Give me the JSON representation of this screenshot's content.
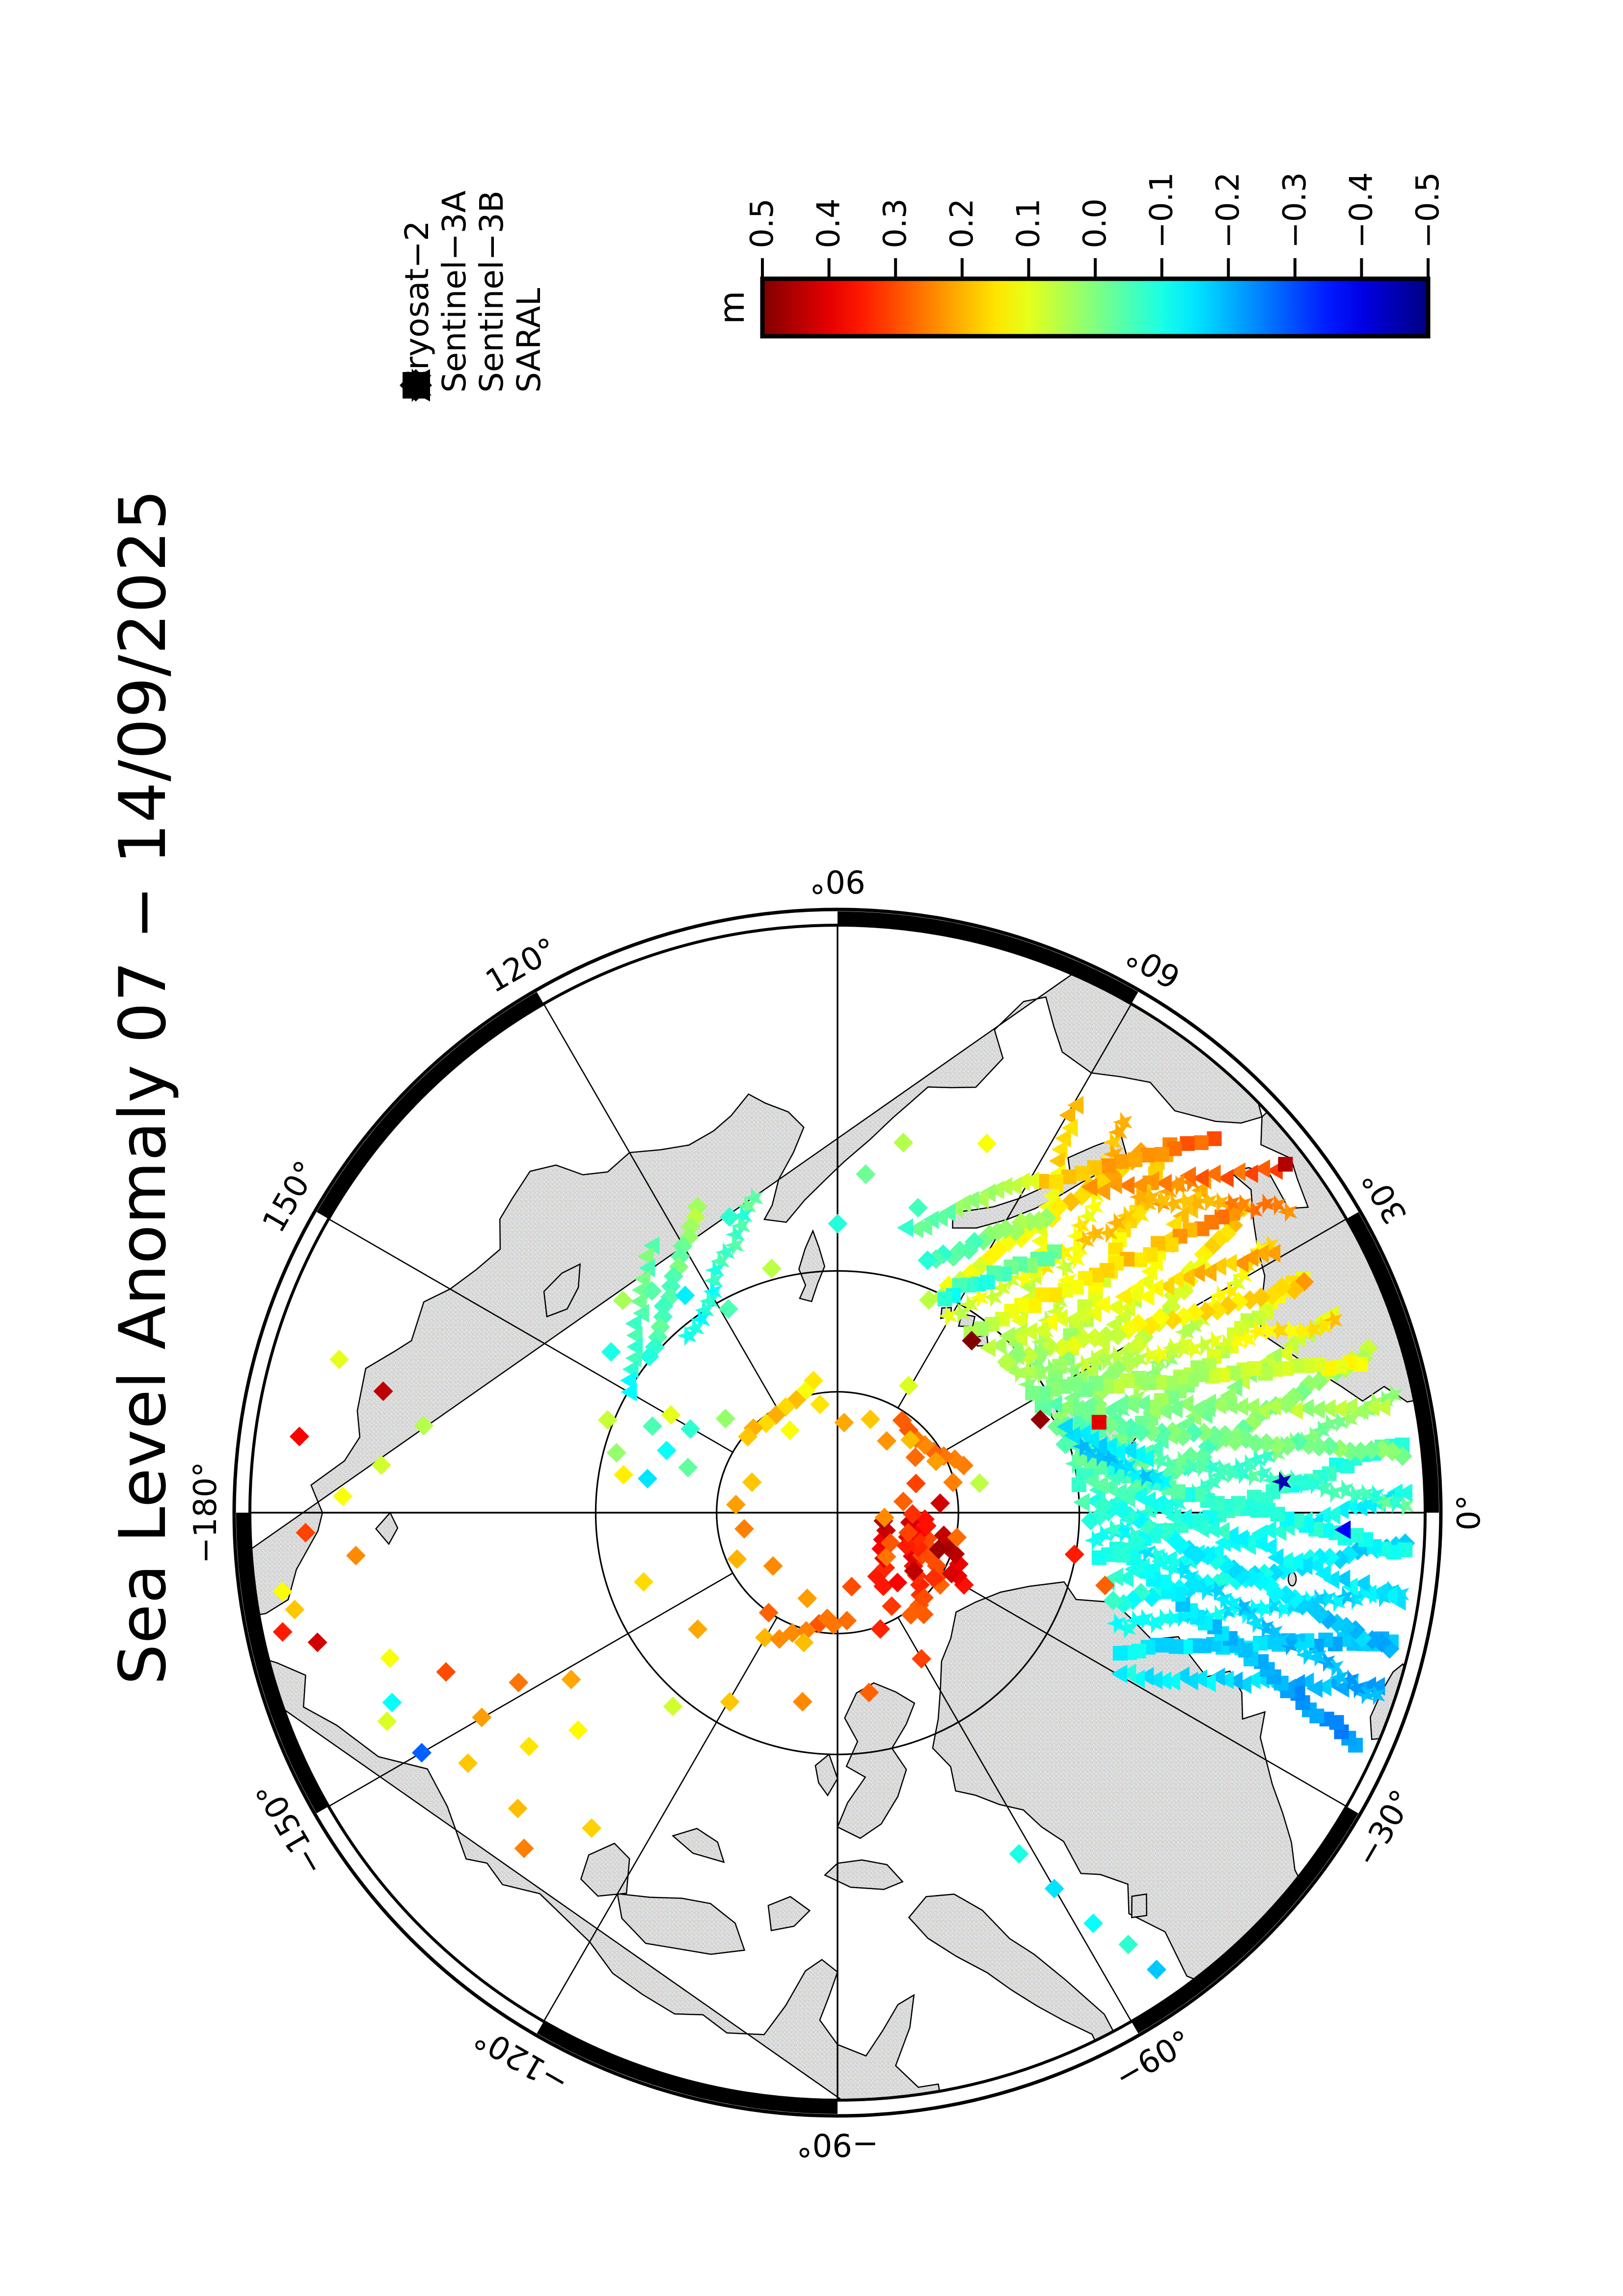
{
  "title": "Sea Level Anomaly 07 − 14/09/2025",
  "legend": {
    "items": [
      {
        "label": "Cryosat−2",
        "symbol": "diamond"
      },
      {
        "label": "Sentinel−3A",
        "symbol": "triangle"
      },
      {
        "label": "Sentinel−3B",
        "symbol": "square"
      },
      {
        "label": "SARAL",
        "symbol": "star"
      }
    ]
  },
  "colorbar": {
    "unit": "m",
    "max": 0.5,
    "min": -0.5,
    "tick_step": 0.1,
    "ticks": [
      "0.5",
      "0.4",
      "0.3",
      "0.2",
      "0.1",
      "0.0",
      "−0.1",
      "−0.2",
      "−0.3",
      "−0.4",
      "−0.5"
    ],
    "palette": "jet"
  },
  "map": {
    "projection": "north_polar_azimuthal",
    "boundary_lat": 66,
    "grid_lat_circles": [
      85,
      80
    ],
    "grid_lon_step": 30,
    "lon_labels": [
      {
        "lon": 0,
        "text": "0°"
      },
      {
        "lon": 30,
        "text": "30°"
      },
      {
        "lon": 60,
        "text": "60°"
      },
      {
        "lon": 90,
        "text": "90°"
      },
      {
        "lon": 120,
        "text": "120°"
      },
      {
        "lon": 150,
        "text": "150°"
      },
      {
        "lon": -180,
        "text": "−180°"
      },
      {
        "lon": -150,
        "text": "−150°"
      },
      {
        "lon": -120,
        "text": "−120°"
      },
      {
        "lon": -90,
        "text": "−90°"
      },
      {
        "lon": -60,
        "text": "−60°"
      },
      {
        "lon": -30,
        "text": "−30°"
      }
    ]
  },
  "chart_data": {
    "type": "scatter",
    "title": "Sea Level Anomaly 07 − 14/09/2025",
    "value_field": "sea_level_anomaly_m",
    "value_range": [
      -0.5,
      0.5
    ],
    "series": [
      {
        "name": "Cryosat−2",
        "marker": "diamond"
      },
      {
        "name": "Sentinel−3A",
        "marker": "triangle"
      },
      {
        "name": "Sentinel−3B",
        "marker": "square"
      },
      {
        "name": "SARAL",
        "marker": "star"
      }
    ],
    "tracks": [
      [
        1,
        -18,
        66.5,
        -30,
        76.5,
        -0.22,
        -0.12,
        30
      ],
      [
        2,
        -13,
        66.5,
        -26,
        77.0,
        -0.2,
        -0.13,
        30
      ],
      [
        3,
        -8,
        66.5,
        -22,
        77.5,
        -0.18,
        -0.12,
        32
      ],
      [
        0,
        -3,
        66.5,
        -18,
        78.0,
        -0.16,
        -0.1,
        32
      ],
      [
        1,
        2,
        66.5,
        -14,
        78.5,
        -0.12,
        -0.1,
        34
      ],
      [
        2,
        7,
        66.5,
        -10,
        79.0,
        -0.06,
        -0.12,
        34
      ],
      [
        3,
        12,
        66.5,
        -6,
        79.3,
        0.02,
        -0.12,
        34
      ],
      [
        0,
        17,
        67.0,
        -2,
        79.5,
        0.06,
        -0.1,
        34
      ],
      [
        1,
        22,
        68.0,
        2,
        79.8,
        0.1,
        -0.08,
        32
      ],
      [
        2,
        27,
        68.5,
        7,
        80.0,
        0.14,
        -0.06,
        32
      ],
      [
        3,
        32,
        69.0,
        12,
        80.0,
        0.16,
        -0.05,
        30
      ],
      [
        0,
        37,
        69.0,
        17,
        80.2,
        0.18,
        -0.04,
        30
      ],
      [
        1,
        42,
        69.5,
        22,
        80.3,
        0.2,
        -0.02,
        28
      ],
      [
        2,
        48,
        69.5,
        28,
        80.5,
        0.22,
        0.0,
        28
      ],
      [
        3,
        54,
        70.0,
        34,
        80.5,
        0.2,
        0.02,
        26
      ],
      [
        1,
        60,
        70.5,
        40,
        80.6,
        0.18,
        0.04,
        24
      ],
      [
        2,
        -24,
        66.5,
        -8,
        78.0,
        -0.24,
        -0.12,
        32
      ],
      [
        3,
        -19,
        66.5,
        -3,
        78.5,
        -0.22,
        -0.1,
        32
      ],
      [
        0,
        -14,
        66.5,
        2,
        79.0,
        -0.2,
        -0.08,
        34
      ],
      [
        1,
        -9,
        66.5,
        7,
        79.4,
        -0.16,
        -0.06,
        34
      ],
      [
        2,
        -4,
        66.5,
        12,
        79.7,
        -0.12,
        -0.05,
        34
      ],
      [
        3,
        1,
        66.5,
        17,
        80.0,
        -0.06,
        -0.04,
        34
      ],
      [
        0,
        6,
        66.5,
        22,
        80.2,
        0.0,
        -0.03,
        34
      ],
      [
        1,
        11,
        67.0,
        27,
        80.4,
        0.06,
        -0.02,
        32
      ],
      [
        2,
        16,
        67.5,
        32,
        80.5,
        0.12,
        0.0,
        32
      ],
      [
        3,
        21,
        68.0,
        37,
        80.6,
        0.16,
        0.02,
        30
      ],
      [
        0,
        26,
        68.5,
        42,
        80.6,
        0.2,
        0.04,
        28
      ],
      [
        1,
        31,
        69.0,
        48,
        80.7,
        0.22,
        0.05,
        28
      ],
      [
        2,
        37,
        69.5,
        54,
        80.7,
        0.24,
        0.06,
        26
      ],
      [
        3,
        43,
        70.0,
        60,
        80.7,
        0.22,
        0.07,
        24
      ],
      [
        0,
        50,
        70.5,
        66,
        80.5,
        0.2,
        0.08,
        22
      ],
      [
        1,
        38,
        67.0,
        52,
        73.0,
        0.3,
        0.2,
        16
      ],
      [
        2,
        45,
        68.0,
        58,
        74.0,
        0.28,
        0.18,
        14
      ],
      [
        3,
        34,
        67.5,
        46,
        72.0,
        0.26,
        0.18,
        14
      ],
      [
        0,
        55,
        75.0,
        70,
        79.0,
        0.05,
        -0.08,
        16
      ],
      [
        1,
        60,
        74.0,
        76,
        78.0,
        0.08,
        -0.05,
        16
      ],
      [
        2,
        50,
        76.0,
        64,
        80.0,
        0.0,
        -0.1,
        14
      ],
      [
        3,
        105,
        76.5,
        130,
        80.5,
        -0.05,
        -0.12,
        16
      ],
      [
        0,
        115,
        76.0,
        140,
        80.0,
        0.04,
        -0.08,
        16
      ],
      [
        1,
        125,
        76.5,
        150,
        80.0,
        -0.02,
        -0.1,
        14
      ],
      [
        0,
        -50,
        84.5,
        -20,
        87.0,
        0.3,
        0.4,
        9
      ],
      [
        0,
        -35,
        84.8,
        -5,
        86.5,
        0.26,
        0.36,
        8
      ],
      [
        0,
        20,
        84.5,
        55,
        85.5,
        0.24,
        0.3,
        8
      ],
      [
        0,
        -120,
        84.0,
        -85,
        85.5,
        0.22,
        0.28,
        7
      ],
      [
        0,
        100,
        84.5,
        135,
        85.2,
        0.14,
        0.2,
        7
      ],
      [
        0,
        -60,
        86.5,
        -10,
        88.0,
        0.32,
        0.42,
        8
      ],
      [
        0,
        -30,
        84.0,
        -12,
        85.5,
        0.35,
        0.45,
        6
      ],
      [
        0,
        -25,
        86.0,
        -8,
        87.0,
        0.3,
        0.42,
        5
      ],
      [
        3,
        5,
        76.5,
        15,
        79.5,
        -0.15,
        -0.18,
        10
      ],
      [
        1,
        10,
        77.0,
        20,
        80.0,
        -0.12,
        -0.16,
        10
      ]
    ],
    "points": [
      [
        -60,
        85.5,
        0.32
      ],
      [
        -55,
        84.8,
        0.28
      ],
      [
        -50,
        86.2,
        0.38
      ],
      [
        -45,
        85.0,
        0.3
      ],
      [
        -42,
        87.2,
        0.26
      ],
      [
        -38,
        86.0,
        0.44
      ],
      [
        -35,
        85.2,
        0.33
      ],
      [
        -30,
        87.5,
        0.29
      ],
      [
        -28,
        84.6,
        0.41
      ],
      [
        -25,
        86.8,
        0.35
      ],
      [
        -20,
        85.5,
        0.47
      ],
      [
        -15,
        87.0,
        0.31
      ],
      [
        -12,
        84.9,
        0.27
      ],
      [
        -8,
        86.3,
        0.36
      ],
      [
        -5,
        88.0,
        0.24
      ],
      [
        0,
        86.9,
        0.33
      ],
      [
        5,
        85.8,
        0.42
      ],
      [
        10,
        87.3,
        0.28
      ],
      [
        15,
        85.1,
        0.25
      ],
      [
        20,
        86.6,
        0.31
      ],
      [
        28,
        85.4,
        0.22
      ],
      [
        35,
        86.1,
        0.27
      ],
      [
        45,
        85.7,
        0.19
      ],
      [
        55,
        86.4,
        0.23
      ],
      [
        70,
        85.9,
        0.18
      ],
      [
        85,
        86.2,
        0.21
      ],
      [
        100,
        85.5,
        0.15
      ],
      [
        120,
        86.0,
        0.12
      ],
      [
        140,
        85.2,
        0.18
      ],
      [
        160,
        86.3,
        0.18
      ],
      [
        175,
        85.8,
        0.22
      ],
      [
        -170,
        86.1,
        0.25
      ],
      [
        -155,
        85.4,
        0.2
      ],
      [
        -140,
        86.5,
        0.24
      ],
      [
        -125,
        85.0,
        0.28
      ],
      [
        -110,
        86.2,
        0.22
      ],
      [
        -95,
        85.6,
        0.26
      ],
      [
        -80,
        86.9,
        0.3
      ],
      [
        -70,
        84.9,
        0.34
      ],
      [
        -100,
        82.0,
        0.24
      ],
      [
        -120,
        81.0,
        0.18
      ],
      [
        -140,
        82.5,
        0.21
      ],
      [
        -160,
        81.5,
        0.16
      ],
      [
        -80,
        82.5,
        0.28
      ],
      [
        -60,
        83.0,
        0.31
      ],
      [
        170,
        81.0,
        0.14
      ],
      [
        150,
        82.0,
        0.1
      ],
      [
        -130,
        79.5,
        0.08
      ],
      [
        130,
        78.0,
        -0.04
      ],
      [
        -150,
        73.0,
        0.22
      ],
      [
        -146,
        71.5,
        0.18
      ],
      [
        -152,
        75.0,
        0.26
      ],
      [
        -158,
        72.5,
        0.3
      ],
      [
        -143,
        74.0,
        0.15
      ],
      [
        -137,
        72.0,
        0.19
      ],
      [
        -162,
        70.5,
        0.12
      ],
      [
        -155,
        69.5,
        0.09
      ],
      [
        -133,
        71.0,
        0.25
      ],
      [
        -128,
        73.5,
        0.17
      ],
      [
        -148,
        77.0,
        0.21
      ],
      [
        -140,
        76.0,
        0.13
      ],
      [
        -150,
        70.2,
        -0.28
      ],
      [
        -157,
        70.0,
        -0.12
      ],
      [
        -175,
        70.0,
        0.24
      ],
      [
        -178,
        68.0,
        0.31
      ],
      [
        178,
        69.5,
        0.12
      ],
      [
        174,
        71.0,
        0.08
      ],
      [
        168,
        72.5,
        0.05
      ],
      [
        165,
        70.5,
        0.44
      ],
      [
        172,
        67.5,
        0.38
      ],
      [
        163,
        68.5,
        0.1
      ],
      [
        -168,
        66.5,
        0.35
      ],
      [
        -170,
        67.2,
        0.18
      ],
      [
        -166,
        67.8,
        0.42
      ],
      [
        -172,
        66.8,
        0.12
      ],
      [
        110,
        77.0,
        -0.08
      ],
      [
        125,
        79.0,
        -0.14
      ],
      [
        135,
        77.5,
        0.04
      ],
      [
        118,
        80.5,
        -0.05
      ],
      [
        145,
        78.5,
        -0.1
      ],
      [
        105,
        79.5,
        0.06
      ],
      [
        -58,
        70.0,
        -0.12
      ],
      [
        -60,
        72.0,
        -0.15
      ],
      [
        -56,
        68.5,
        -0.08
      ],
      [
        -62,
        74.0,
        -0.1
      ],
      [
        -55,
        67.0,
        -0.18
      ],
      [
        75,
        77.0,
        -0.06
      ],
      [
        80,
        74.5,
        0.05
      ],
      [
        68,
        73.5,
        0.12
      ],
      [
        85,
        76.0,
        -0.02
      ],
      [
        90,
        78.0,
        -0.09
      ],
      [
        19,
        78.5,
        0.4,
        2
      ],
      [
        25,
        80.8,
        0.48
      ],
      [
        52,
        80.9,
        0.5
      ],
      [
        155,
        81.5,
        -0.05
      ],
      [
        160,
        82.5,
        -0.12
      ],
      [
        165,
        80.5,
        0.02
      ],
      [
        150,
        83.0,
        -0.08
      ],
      [
        170,
        82.0,
        -0.15
      ],
      [
        158,
        79.8,
        0.07
      ],
      [
        163,
        83.5,
        -0.03
      ],
      [
        -10,
        80.0,
        0.35
      ],
      [
        -15,
        78.5,
        0.28
      ],
      [
        4,
        71.5,
        -0.45,
        3
      ],
      [
        -2,
        69.0,
        -0.38,
        1
      ],
      [
        38,
        66.5,
        0.45,
        2
      ],
      [
        12,
        84.0,
        0.06
      ],
      [
        60,
        84.0,
        0.09
      ],
      [
        -105,
        84.5,
        0.19
      ],
      [
        140,
        84.0,
        0.02
      ]
    ]
  }
}
